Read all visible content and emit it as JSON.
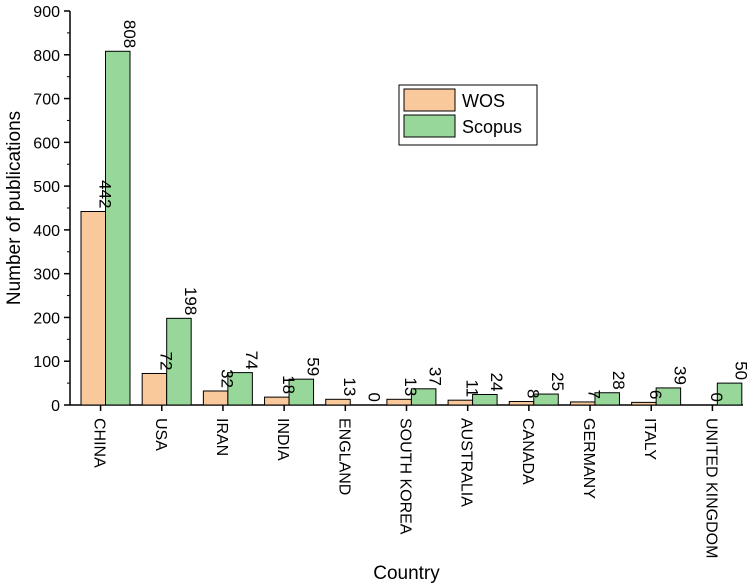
{
  "chart_data": {
    "type": "bar",
    "xlabel": "Country",
    "ylabel": "Number of publications",
    "ylim": [
      0,
      900
    ],
    "yticks": [
      "0",
      "100",
      "200",
      "300",
      "400",
      "500",
      "600",
      "700",
      "800",
      "900"
    ],
    "categories": [
      "CHINA",
      "USA",
      "IRAN",
      "INDIA",
      "ENGLAND",
      "SOUTH KOREA",
      "AUSTRALIA",
      "CANADA",
      "GERMANY",
      "ITALY",
      "UNITED KINGDOM"
    ],
    "series": [
      {
        "name": "WOS",
        "color": "#F9C89B",
        "values": [
          442,
          72,
          32,
          18,
          13,
          13,
          11,
          8,
          7,
          6,
          0
        ]
      },
      {
        "name": "Scopus",
        "color": "#98D79A",
        "values": [
          808,
          198,
          74,
          59,
          0,
          37,
          24,
          25,
          28,
          39,
          50
        ]
      }
    ],
    "legend_position": "top-right",
    "grid": false
  }
}
